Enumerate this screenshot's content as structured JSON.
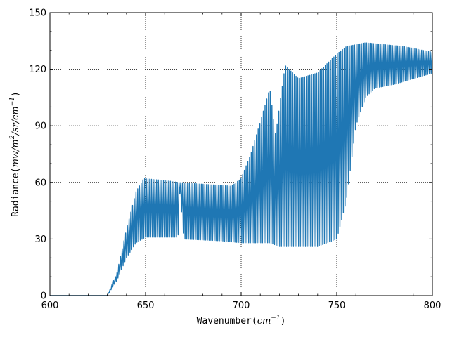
{
  "chart_data": {
    "type": "line",
    "xlabel": {
      "prefix": "Wavenumber(",
      "math_text": "cm",
      "math_exponent": "−1",
      "suffix": ")"
    },
    "ylabel": {
      "prefix": "Radiance(",
      "math_text": "mw/m",
      "math_exponent_1": "2",
      "math_mid": "/sr/cm",
      "math_exponent_2": "−1",
      "suffix": ")"
    },
    "xlim": [
      600,
      800
    ],
    "ylim": [
      0,
      150
    ],
    "x_ticks": [
      600,
      650,
      700,
      750,
      800
    ],
    "y_ticks": [
      0,
      30,
      60,
      90,
      120,
      150
    ],
    "x_tick_labels": [
      "600",
      "650",
      "700",
      "750",
      "800"
    ],
    "y_tick_labels": [
      "0",
      "30",
      "60",
      "90",
      "120",
      "150"
    ],
    "grid": true,
    "grid_style": "dotted",
    "series": [
      {
        "color": "#1f77b4",
        "description_points": [
          {
            "x": 600,
            "y": 0
          },
          {
            "x": 630,
            "y": 0
          },
          {
            "x": 635,
            "y": 10
          },
          {
            "x": 640,
            "y": 25
          },
          {
            "x": 645,
            "y": 40
          },
          {
            "x": 650,
            "y": 31
          },
          {
            "x": 660,
            "y": 31
          },
          {
            "x": 667,
            "y": 31
          },
          {
            "x": 670,
            "y": 30
          },
          {
            "x": 690,
            "y": 29
          },
          {
            "x": 700,
            "y": 28
          },
          {
            "x": 715,
            "y": 28
          },
          {
            "x": 720,
            "y": 27
          },
          {
            "x": 740,
            "y": 26
          },
          {
            "x": 750,
            "y": 27
          },
          {
            "x": 760,
            "y": 90
          },
          {
            "x": 770,
            "y": 115
          },
          {
            "x": 780,
            "y": 118
          },
          {
            "x": 790,
            "y": 120
          },
          {
            "x": 800,
            "y": 120
          }
        ],
        "envelope_upper": [
          {
            "x": 600,
            "y": 0
          },
          {
            "x": 630,
            "y": 0
          },
          {
            "x": 635,
            "y": 12
          },
          {
            "x": 640,
            "y": 35
          },
          {
            "x": 645,
            "y": 55
          },
          {
            "x": 649,
            "y": 62
          },
          {
            "x": 660,
            "y": 61
          },
          {
            "x": 667,
            "y": 60
          },
          {
            "x": 680,
            "y": 59
          },
          {
            "x": 695,
            "y": 58
          },
          {
            "x": 700,
            "y": 62
          },
          {
            "x": 705,
            "y": 75
          },
          {
            "x": 710,
            "y": 92
          },
          {
            "x": 715,
            "y": 110
          },
          {
            "x": 718,
            "y": 85
          },
          {
            "x": 720,
            "y": 100
          },
          {
            "x": 723,
            "y": 122
          },
          {
            "x": 730,
            "y": 115
          },
          {
            "x": 740,
            "y": 118
          },
          {
            "x": 750,
            "y": 128
          },
          {
            "x": 755,
            "y": 132
          },
          {
            "x": 765,
            "y": 134
          },
          {
            "x": 775,
            "y": 133
          },
          {
            "x": 785,
            "y": 132
          },
          {
            "x": 795,
            "y": 130
          },
          {
            "x": 800,
            "y": 129
          }
        ],
        "envelope_lower": [
          {
            "x": 600,
            "y": 0
          },
          {
            "x": 630,
            "y": 0
          },
          {
            "x": 635,
            "y": 8
          },
          {
            "x": 640,
            "y": 20
          },
          {
            "x": 645,
            "y": 28
          },
          {
            "x": 650,
            "y": 31
          },
          {
            "x": 660,
            "y": 31
          },
          {
            "x": 667,
            "y": 31
          },
          {
            "x": 668,
            "y": 55
          },
          {
            "x": 670,
            "y": 30
          },
          {
            "x": 690,
            "y": 29
          },
          {
            "x": 700,
            "y": 28
          },
          {
            "x": 715,
            "y": 28
          },
          {
            "x": 720,
            "y": 26
          },
          {
            "x": 730,
            "y": 26
          },
          {
            "x": 740,
            "y": 26
          },
          {
            "x": 750,
            "y": 30
          },
          {
            "x": 755,
            "y": 50
          },
          {
            "x": 760,
            "y": 90
          },
          {
            "x": 765,
            "y": 105
          },
          {
            "x": 770,
            "y": 110
          },
          {
            "x": 780,
            "y": 112
          },
          {
            "x": 790,
            "y": 115
          },
          {
            "x": 800,
            "y": 118
          }
        ]
      }
    ]
  }
}
